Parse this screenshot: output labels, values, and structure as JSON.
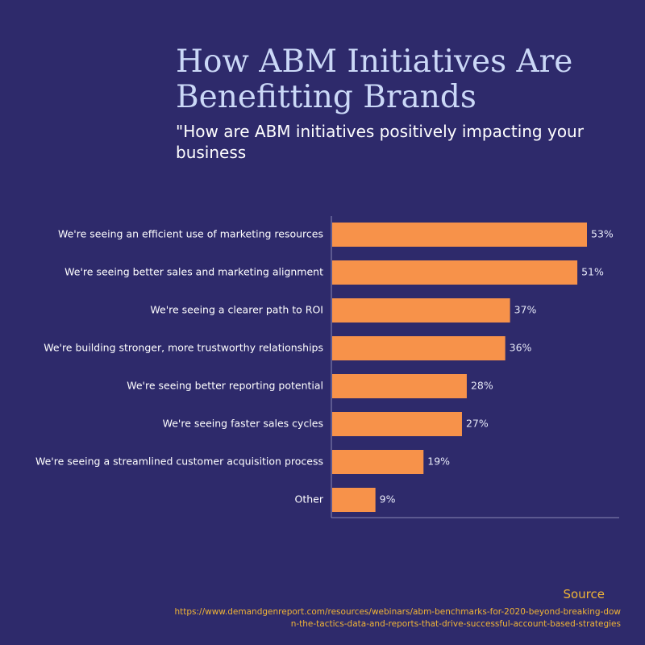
{
  "chart_data": {
    "type": "bar",
    "orientation": "horizontal",
    "title": "How ABM Initiatives Are Benefitting Brands",
    "subtitle": "\"How are ABM initiatives positively impacting your business",
    "categories": [
      "We're seeing an efficient use of marketing resources",
      "We're seeing better sales and marketing alignment",
      "We're seeing a clearer path to ROI",
      "We're building stronger, more trustworthy relationships",
      "We're seeing better reporting potential",
      "We're seeing faster sales cycles",
      "We're seeing a streamlined customer acquisition process",
      "Other"
    ],
    "values": [
      53,
      51,
      37,
      36,
      28,
      27,
      19,
      9
    ],
    "value_labels": [
      "53%",
      "51%",
      "37%",
      "36%",
      "28%",
      "27%",
      "19%",
      "9%"
    ],
    "xlim": [
      0,
      60
    ],
    "grid": false,
    "bar_color": "#f7924a"
  },
  "source": {
    "label": "Source",
    "url": "https://www.demandgenreport.com/resources/webinars/abm-benchmarks-for-2020-beyond-breaking-down-the-tactics-data-and-reports-that-drive-successful-account-based-strategies"
  },
  "colors": {
    "background": "#2e2a6b",
    "title": "#cbd8f7",
    "source": "#f0b436",
    "axis": "#8a88b5"
  }
}
